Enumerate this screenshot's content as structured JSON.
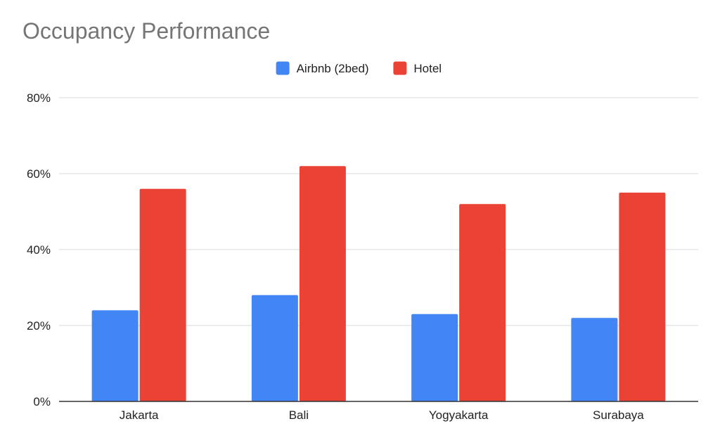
{
  "chart_data": {
    "type": "bar",
    "title": "Occupancy Performance",
    "categories": [
      "Jakarta",
      "Bali",
      "Yogyakarta",
      "Surabaya"
    ],
    "series": [
      {
        "name": "Airbnb (2bed)",
        "color": "#4285f4",
        "values": [
          24,
          28,
          23,
          22
        ]
      },
      {
        "name": "Hotel",
        "color": "#ea4335",
        "values": [
          56,
          62,
          52,
          55
        ]
      }
    ],
    "ylim": [
      0,
      80
    ],
    "yticks": [
      0,
      20,
      40,
      60,
      80
    ],
    "ytick_labels": [
      "0%",
      "20%",
      "40%",
      "60%",
      "80%"
    ],
    "grid": true,
    "legend_position": "top-center",
    "xlabel": "",
    "ylabel": ""
  }
}
